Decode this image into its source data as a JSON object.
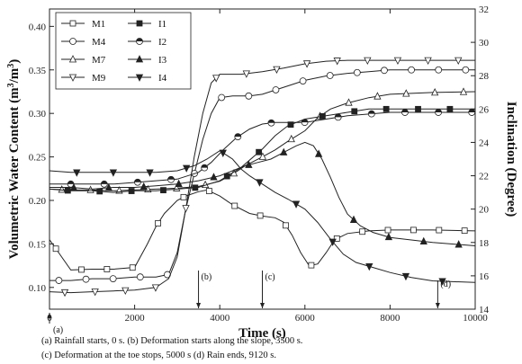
{
  "chart_data": {
    "type": "line",
    "xlabel": "Time (s)",
    "ylabel_left": "Volumetric Water Content (m³/m³)",
    "ylabel_right": "Inclination (Degree)",
    "xlim": [
      0,
      10000
    ],
    "ylim_left": [
      0.075,
      0.42
    ],
    "ylim_right": [
      14,
      32
    ],
    "x_ticks": [
      "0",
      "2000",
      "4000",
      "6000",
      "8000",
      "10000"
    ],
    "y_ticks_left": [
      "0.10",
      "0.15",
      "0.20",
      "0.25",
      "0.30",
      "0.35",
      "0.40"
    ],
    "y_ticks_right": [
      "14",
      "16",
      "18",
      "20",
      "22",
      "24",
      "26",
      "28",
      "30",
      "32"
    ],
    "legend_placement": "top-left",
    "series": [
      {
        "name": "M1",
        "axis": "left",
        "marker": "square-open",
        "x": [
          0,
          500,
          1000,
          1500,
          2000,
          2300,
          2500,
          2700,
          3000,
          3200,
          3500,
          3700,
          4000,
          4300,
          4700,
          5000,
          5300,
          5500,
          5700,
          5900,
          6100,
          6300,
          6500,
          6700,
          7000,
          7500,
          8000,
          8500,
          9000,
          10000
        ],
        "y": [
          0.155,
          0.12,
          0.121,
          0.121,
          0.123,
          0.15,
          0.17,
          0.185,
          0.2,
          0.205,
          0.21,
          0.212,
          0.205,
          0.195,
          0.185,
          0.182,
          0.18,
          0.175,
          0.16,
          0.14,
          0.125,
          0.127,
          0.14,
          0.155,
          0.162,
          0.165,
          0.166,
          0.166,
          0.166,
          0.165
        ]
      },
      {
        "name": "M4",
        "axis": "left",
        "marker": "circle-open",
        "x": [
          0,
          500,
          1000,
          1500,
          2000,
          2500,
          2800,
          3000,
          3200,
          3400,
          3600,
          3800,
          4000,
          4300,
          4700,
          5000,
          5500,
          6000,
          6500,
          7000,
          7500,
          8000,
          9000,
          10000
        ],
        "y": [
          0.108,
          0.108,
          0.11,
          0.11,
          0.112,
          0.112,
          0.115,
          0.14,
          0.19,
          0.23,
          0.27,
          0.3,
          0.318,
          0.32,
          0.32,
          0.322,
          0.33,
          0.338,
          0.343,
          0.346,
          0.348,
          0.35,
          0.35,
          0.35
        ]
      },
      {
        "name": "M7",
        "axis": "left",
        "marker": "triangle-up-open",
        "x": [
          0,
          500,
          1000,
          1500,
          2000,
          2500,
          3000,
          3500,
          4000,
          4300,
          4600,
          5000,
          5300,
          5600,
          6000,
          6300,
          6600,
          7000,
          7500,
          8000,
          9000,
          10000
        ],
        "y": [
          0.213,
          0.212,
          0.212,
          0.211,
          0.212,
          0.213,
          0.214,
          0.216,
          0.222,
          0.23,
          0.24,
          0.25,
          0.258,
          0.268,
          0.28,
          0.295,
          0.305,
          0.312,
          0.318,
          0.322,
          0.324,
          0.325
        ]
      },
      {
        "name": "M9",
        "axis": "left",
        "marker": "triangle-down-open",
        "x": [
          0,
          500,
          1000,
          1500,
          2000,
          2500,
          2800,
          3000,
          3200,
          3400,
          3600,
          3800,
          4000,
          4500,
          5000,
          5500,
          6000,
          6500,
          7000,
          8000,
          9000,
          10000
        ],
        "y": [
          0.095,
          0.094,
          0.095,
          0.096,
          0.097,
          0.1,
          0.11,
          0.135,
          0.19,
          0.25,
          0.3,
          0.335,
          0.345,
          0.345,
          0.348,
          0.352,
          0.357,
          0.36,
          0.361,
          0.361,
          0.361,
          0.361
        ]
      },
      {
        "name": "I1",
        "axis": "right",
        "marker": "square-filled",
        "x": [
          0,
          500,
          1000,
          1500,
          2000,
          2500,
          3000,
          3500,
          4000,
          4500,
          5000,
          5300,
          5600,
          6000,
          6500,
          7000,
          7500,
          8000,
          9000,
          10000
        ],
        "y": [
          21.2,
          21.1,
          21.1,
          21.0,
          21.1,
          21.1,
          21.2,
          21.3,
          21.7,
          22.5,
          23.6,
          24.4,
          25.0,
          25.4,
          25.6,
          25.8,
          26.0,
          26.0,
          26.0,
          26.0
        ]
      },
      {
        "name": "I2",
        "axis": "right",
        "marker": "circle-half",
        "x": [
          0,
          500,
          1000,
          1500,
          2000,
          2500,
          3000,
          3500,
          3800,
          4100,
          4400,
          4700,
          5000,
          5300,
          5600,
          6000,
          6500,
          7000,
          8000,
          9000,
          10000
        ],
        "y": [
          21.5,
          21.5,
          21.5,
          21.5,
          21.6,
          21.7,
          21.8,
          22.2,
          22.8,
          23.6,
          24.3,
          24.8,
          25.1,
          25.2,
          25.2,
          25.2,
          25.4,
          25.6,
          25.8,
          25.8,
          25.8
        ]
      },
      {
        "name": "I3",
        "axis": "right",
        "marker": "triangle-up-filled",
        "x": [
          0,
          500,
          1000,
          1500,
          2000,
          2500,
          3000,
          3500,
          4000,
          4300,
          4600,
          4900,
          5200,
          5500,
          5800,
          6000,
          6200,
          6400,
          6600,
          6800,
          7000,
          7300,
          7600,
          8000,
          9000,
          10000
        ],
        "y": [
          21.3,
          21.3,
          21.2,
          21.3,
          21.3,
          21.4,
          21.5,
          21.7,
          22.0,
          22.3,
          22.6,
          22.8,
          23.0,
          23.4,
          23.8,
          24.0,
          23.8,
          23.0,
          21.9,
          20.7,
          19.7,
          19.0,
          18.6,
          18.3,
          18.0,
          17.8
        ]
      },
      {
        "name": "I4",
        "axis": "right",
        "marker": "triangle-down-filled",
        "x": [
          0,
          500,
          1000,
          1500,
          2000,
          2500,
          3000,
          3400,
          3700,
          4000,
          4300,
          4500,
          4700,
          5000,
          5300,
          5600,
          6000,
          6300,
          6600,
          6900,
          7200,
          7600,
          8000,
          8500,
          9000,
          10000
        ],
        "y": [
          22.3,
          22.2,
          22.2,
          22.2,
          22.2,
          22.2,
          22.3,
          22.6,
          23.0,
          23.5,
          23.0,
          22.4,
          22.0,
          21.5,
          21.0,
          20.6,
          20.0,
          19.2,
          18.2,
          17.3,
          16.8,
          16.5,
          16.2,
          15.9,
          15.7,
          15.6
        ]
      }
    ],
    "events": [
      {
        "label": "(a)",
        "x": 0
      },
      {
        "label": "(b)",
        "x": 3500
      },
      {
        "label": "(c)",
        "x": 5000
      },
      {
        "label": "(d)",
        "x": 9120
      }
    ]
  },
  "caption": {
    "line1": "(a) Rainfall starts, 0 s. (b) Deformation starts along the slope, 3500 s.",
    "line2": "(c) Deformation at the toe stops, 5000 s (d) Rain ends, 9120 s."
  }
}
